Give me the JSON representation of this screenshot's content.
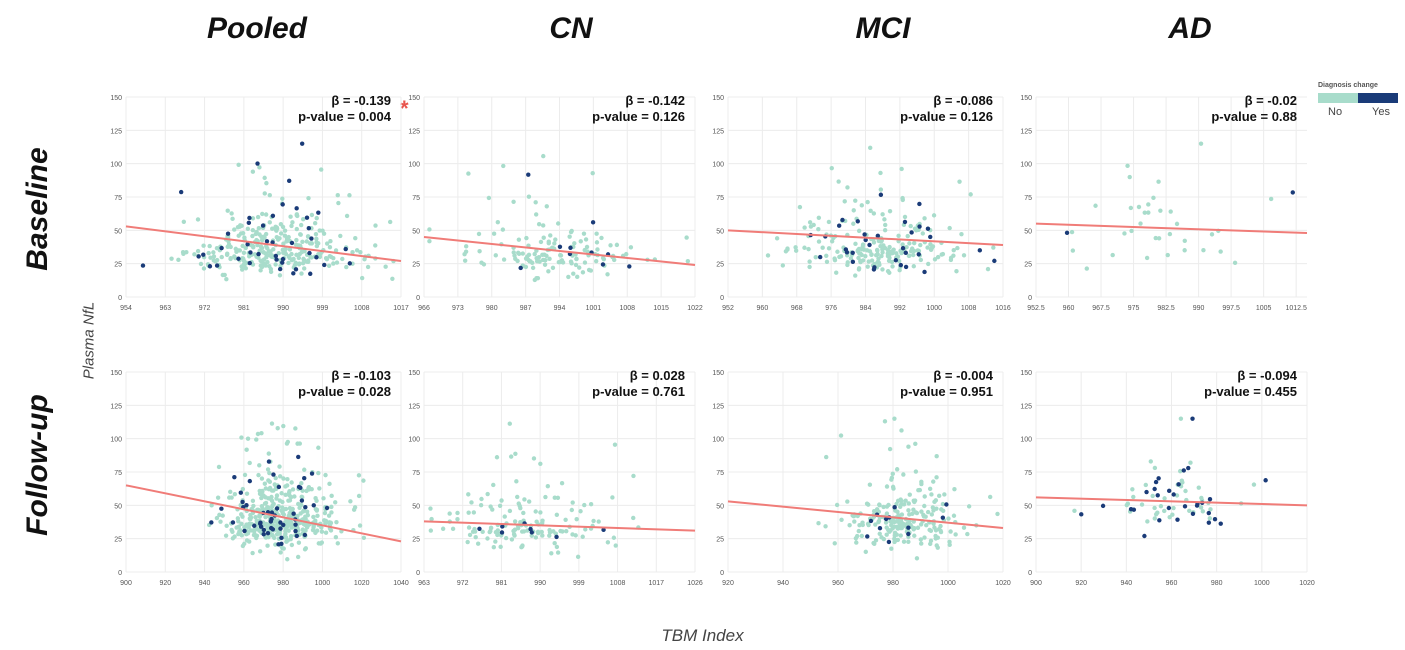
{
  "column_titles": [
    "Pooled",
    "CN",
    "MCI",
    "AD"
  ],
  "row_titles": [
    "Baseline",
    "Follow-up"
  ],
  "y_axis_label": "Plasma NfL",
  "x_axis_label": "TBM Index",
  "significance_marker": "*",
  "legend": {
    "title": "Diagnosis change",
    "labels": [
      "No",
      "Yes"
    ]
  },
  "colors": {
    "no_change": "#a8dccb",
    "change": "#1a3b78",
    "fit_line": "#f07c78",
    "grid": "#ececec"
  },
  "chart_data": [
    {
      "type": "scatter",
      "row": "Baseline",
      "group": "Pooled",
      "beta": "β = -0.139",
      "p_value": "p-value = 0.004",
      "xlim": [
        954,
        1017
      ],
      "ylim": [
        0,
        150
      ],
      "xticks": [
        "954",
        "963",
        "972",
        "981",
        "990",
        "999",
        "1008",
        "1017"
      ],
      "yticks": [
        "0",
        "25",
        "50",
        "75",
        "100",
        "125",
        "150"
      ],
      "fit_line": [
        [
          954,
          53
        ],
        [
          1017,
          27
        ]
      ],
      "n_no": 300,
      "n_yes": 42,
      "x_center": 988,
      "x_spread": 10,
      "y_center": 34,
      "y_spread": 14
    },
    {
      "type": "scatter",
      "row": "Baseline",
      "group": "CN",
      "beta": "β = -0.142",
      "p_value": "p-value = 0.126",
      "xlim": [
        966,
        1022
      ],
      "ylim": [
        0,
        150
      ],
      "xticks": [
        "966",
        "973",
        "980",
        "987",
        "994",
        "1001",
        "1008",
        "1015",
        "1022"
      ],
      "yticks": [
        "0",
        "25",
        "50",
        "75",
        "100",
        "125",
        "150"
      ],
      "fit_line": [
        [
          966,
          45
        ],
        [
          1022,
          24
        ]
      ],
      "n_no": 140,
      "n_yes": 10,
      "x_center": 992,
      "x_spread": 9,
      "y_center": 32,
      "y_spread": 12
    },
    {
      "type": "scatter",
      "row": "Baseline",
      "group": "MCI",
      "beta": "β = -0.086",
      "p_value": "p-value = 0.126",
      "xlim": [
        952,
        1016
      ],
      "ylim": [
        0,
        150
      ],
      "xticks": [
        "952",
        "960",
        "968",
        "976",
        "984",
        "992",
        "1000",
        "1008",
        "1016"
      ],
      "yticks": [
        "0",
        "25",
        "50",
        "75",
        "100",
        "125",
        "150"
      ],
      "fit_line": [
        [
          952,
          50
        ],
        [
          1016,
          39
        ]
      ],
      "n_no": 210,
      "n_yes": 32,
      "x_center": 987,
      "x_spread": 10,
      "y_center": 36,
      "y_spread": 14
    },
    {
      "type": "scatter",
      "row": "Baseline",
      "group": "AD",
      "beta": "β = -0.02",
      "p_value": "p-value = 0.88",
      "xlim": [
        952.5,
        1015
      ],
      "ylim": [
        0,
        150
      ],
      "xticks": [
        "952.5",
        "960",
        "967.5",
        "975",
        "982.5",
        "990",
        "997.5",
        "1005",
        "1012.5"
      ],
      "yticks": [
        "0",
        "25",
        "50",
        "75",
        "100",
        "125",
        "150"
      ],
      "fit_line": [
        [
          952.5,
          55
        ],
        [
          1015,
          48
        ]
      ],
      "n_no": 34,
      "n_yes": 2,
      "x_center": 980,
      "x_spread": 14,
      "y_center": 48,
      "y_spread": 18
    },
    {
      "type": "scatter",
      "row": "Follow-up",
      "group": "Pooled",
      "beta": "β = -0.103",
      "p_value": "p-value = 0.028",
      "xlim": [
        900,
        1040
      ],
      "ylim": [
        0,
        150
      ],
      "xticks": [
        "900",
        "920",
        "940",
        "960",
        "980",
        "1000",
        "1020",
        "1040"
      ],
      "yticks": [
        "0",
        "25",
        "50",
        "75",
        "100",
        "125",
        "150"
      ],
      "fit_line": [
        [
          900,
          65
        ],
        [
          1040,
          23
        ]
      ],
      "n_no": 420,
      "n_yes": 50,
      "x_center": 978,
      "x_spread": 15,
      "y_center": 38,
      "y_spread": 15
    },
    {
      "type": "scatter",
      "row": "Follow-up",
      "group": "CN",
      "beta": "β = 0.028",
      "p_value": "p-value = 0.761",
      "xlim": [
        963,
        1026
      ],
      "ylim": [
        0,
        150
      ],
      "xticks": [
        "963",
        "972",
        "981",
        "990",
        "999",
        "1008",
        "1017",
        "1026"
      ],
      "yticks": [
        "0",
        "25",
        "50",
        "75",
        "100",
        "125",
        "150"
      ],
      "fit_line": [
        [
          963,
          38
        ],
        [
          1026,
          31
        ]
      ],
      "n_no": 140,
      "n_yes": 8,
      "x_center": 988,
      "x_spread": 10,
      "y_center": 33,
      "y_spread": 13
    },
    {
      "type": "scatter",
      "row": "Follow-up",
      "group": "MCI",
      "beta": "β = -0.004",
      "p_value": "p-value = 0.951",
      "xlim": [
        920,
        1020
      ],
      "ylim": [
        0,
        150
      ],
      "xticks": [
        "920",
        "940",
        "960",
        "980",
        "1000",
        "1020"
      ],
      "yticks": [
        "0",
        "25",
        "50",
        "75",
        "100",
        "125",
        "150"
      ],
      "fit_line": [
        [
          920,
          53
        ],
        [
          1020,
          33
        ]
      ],
      "n_no": 230,
      "n_yes": 12,
      "x_center": 982,
      "x_spread": 11,
      "y_center": 36,
      "y_spread": 14
    },
    {
      "type": "scatter",
      "row": "Follow-up",
      "group": "AD",
      "beta": "β = -0.094",
      "p_value": "p-value = 0.455",
      "xlim": [
        900,
        1020
      ],
      "ylim": [
        0,
        150
      ],
      "xticks": [
        "900",
        "920",
        "940",
        "960",
        "980",
        "1000",
        "1020"
      ],
      "yticks": [
        "0",
        "25",
        "50",
        "75",
        "100",
        "125",
        "150"
      ],
      "fit_line": [
        [
          900,
          56
        ],
        [
          1020,
          50
        ]
      ],
      "n_no": 45,
      "n_yes": 30,
      "x_center": 962,
      "x_spread": 14,
      "y_center": 52,
      "y_spread": 15
    }
  ]
}
